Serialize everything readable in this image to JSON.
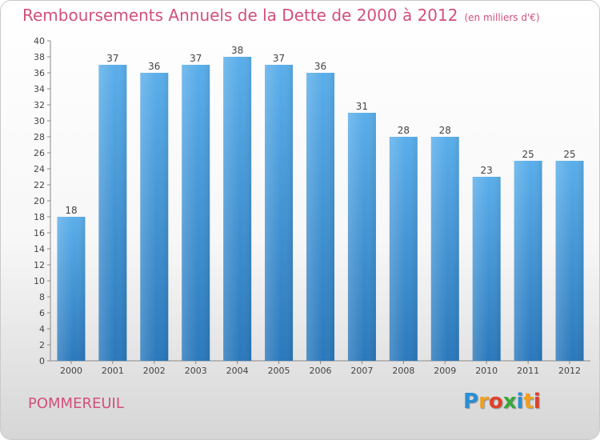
{
  "header": {
    "title": "Remboursements Annuels de la Dette de 2000 à 2012",
    "subtitle": "(en milliers d'€)"
  },
  "footer": {
    "commune": "POMMEREUIL",
    "logo_letters": [
      "P",
      "r",
      "o",
      "x",
      "i",
      "t",
      "i"
    ],
    "logo_colors": [
      "#2a8fd4",
      "#f0a020",
      "#e0402a",
      "#3aa83a",
      "#2a8fd4",
      "#f0a020",
      "#e0402a"
    ]
  },
  "colors": {
    "title": "#d2507a",
    "bar_top": "#5aaeea",
    "bar_bottom": "#2a78bb"
  },
  "chart_data": {
    "type": "bar",
    "categories": [
      "2000",
      "2001",
      "2002",
      "2003",
      "2004",
      "2005",
      "2006",
      "2007",
      "2008",
      "2009",
      "2010",
      "2011",
      "2012"
    ],
    "values": [
      18,
      37,
      36,
      37,
      38,
      37,
      36,
      31,
      28,
      28,
      23,
      25,
      25
    ],
    "title": "Remboursements Annuels de la Dette de 2000 à 2012",
    "xlabel": "",
    "ylabel": "",
    "ylim": [
      0,
      40
    ],
    "ytick_step": 2,
    "grid": false,
    "legend": "none"
  }
}
